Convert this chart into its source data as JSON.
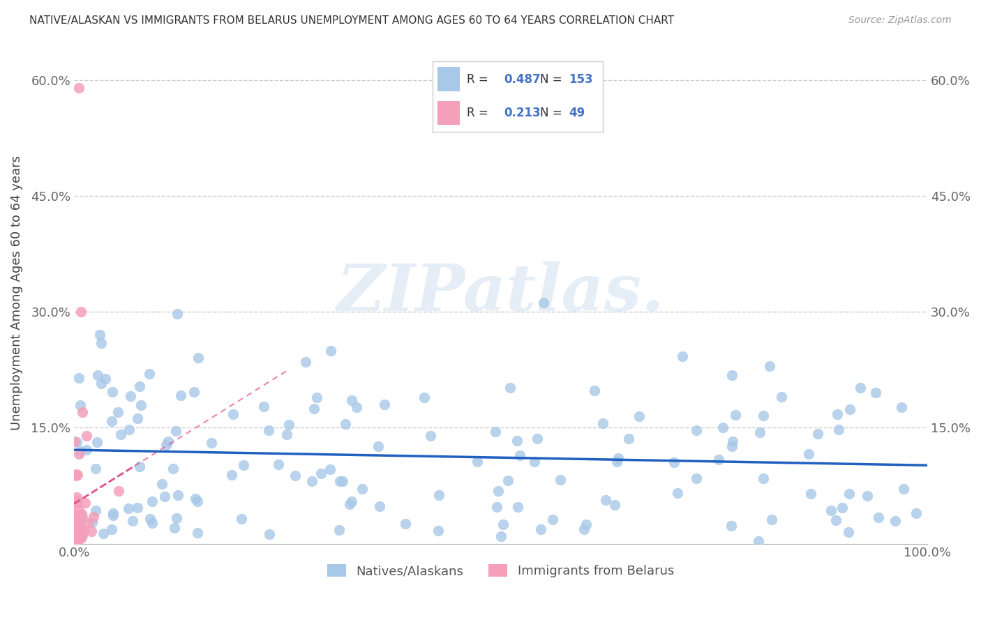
{
  "title": "NATIVE/ALASKAN VS IMMIGRANTS FROM BELARUS UNEMPLOYMENT AMONG AGES 60 TO 64 YEARS CORRELATION CHART",
  "source": "Source: ZipAtlas.com",
  "ylabel": "Unemployment Among Ages 60 to 64 years",
  "xlim": [
    0,
    1.0
  ],
  "ylim": [
    0,
    0.65
  ],
  "yticks": [
    0.0,
    0.15,
    0.3,
    0.45,
    0.6
  ],
  "yticklabels": [
    "",
    "15.0%",
    "30.0%",
    "45.0%",
    "60.0%"
  ],
  "legend1_R": "0.487",
  "legend1_N": "153",
  "legend2_R": "0.213",
  "legend2_N": "49",
  "blue_scatter_color": "#A8C8E8",
  "pink_scatter_color": "#F4A0BB",
  "regression_line_color": "#2060C0",
  "regression_pink_color": "#E05090",
  "watermark": "ZIPatlas.",
  "background_color": "#FFFFFF",
  "legend_text_color": "#4472C4",
  "blue_N": 153,
  "pink_N": 49,
  "natives_label": "Natives/Alaskans",
  "immigrants_label": "Immigrants from Belarus"
}
